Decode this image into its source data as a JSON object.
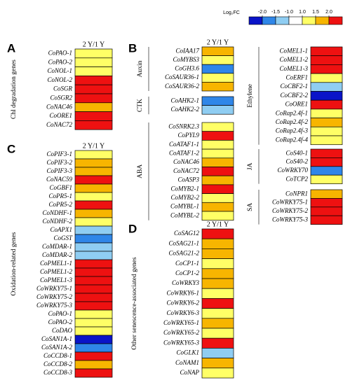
{
  "chart_data": {
    "type": "heatmap",
    "legend": {
      "title": "Log₂FC",
      "ticks": [
        {
          "value": -2,
          "label": "-2.0"
        },
        {
          "value": -1.5,
          "label": "-1.5"
        },
        {
          "value": -1,
          "label": "-1.0"
        },
        {
          "value": 1,
          "label": "1.0"
        },
        {
          "value": 1.5,
          "label": "1.5"
        },
        {
          "value": 2,
          "label": "2.0"
        }
      ],
      "colors": [
        "#0a14c8",
        "#2f86e8",
        "#8fcdf2",
        "#ffffff",
        "#ffff66",
        "#f7b500",
        "#ee1111"
      ]
    },
    "panels": [
      {
        "letter": "A",
        "column": "2 Y/1 Y",
        "groups": [
          {
            "label": "Chl degradation genes",
            "genes": [
              "CoPAO-1",
              "CoPAO-2",
              "CoNOL-1",
              "CoNOL-2",
              "CoSGR",
              "CoSGR2",
              "CoNAC46",
              "CoORE1",
              "CoNAC72"
            ],
            "values": [
              1.25,
              1.25,
              1.25,
              2.5,
              2.5,
              2.5,
              1.75,
              2.5,
              2.5
            ]
          }
        ]
      },
      {
        "letter": "B",
        "column": "2 Y/1 Y",
        "groups": [
          {
            "label": "Auxin",
            "genes": [
              "CoIAA17",
              "CoMYBS3",
              "CoGH3.6",
              "CoSAUR36-1",
              "CoSAUR36-2"
            ],
            "values": [
              1.75,
              1.25,
              -1.75,
              1.25,
              1.75
            ]
          },
          {
            "label": "CTK",
            "genes": [
              "CoAHK2-1",
              "CoAHK2-2"
            ],
            "values": [
              -1.75,
              -1.25
            ]
          },
          {
            "label": "ABA",
            "genes": [
              "CoSNRK2.3",
              "CoPYL9",
              "CoATAF1-1",
              "CoATAF1-2",
              "CoNAC46",
              "CoNAC72",
              "CoASP3",
              "CoMYB2-1",
              "CoMYB2-2",
              "CoMYBL-1",
              "CoMYBL-2"
            ],
            "values": [
              1.25,
              2.5,
              1.25,
              1.25,
              1.75,
              2.5,
              1.75,
              2.5,
              1.25,
              1.75,
              1.25
            ]
          },
          {
            "label": "Ethylene",
            "genes": [
              "CoMEL1-1",
              "CoMEL1-2",
              "CoMEL1-3",
              "CoERF1",
              "CoCBF2-1",
              "CoCBF2-2",
              "CoORE1",
              "CoRap2.4f-1",
              "CoRap2.4f-2",
              "CoRap2.4f-3",
              "CoRap2.4f-4"
            ],
            "values": [
              2.5,
              2.5,
              2.5,
              1.25,
              -1.25,
              -2.5,
              2.5,
              1.25,
              1.75,
              1.25,
              1.25
            ]
          },
          {
            "label": "JA",
            "genes": [
              "CoS40-1",
              "CoS40-2",
              "CoWRKY70",
              "CoTCP2"
            ],
            "values": [
              2.5,
              2.5,
              -1.75,
              1.25
            ]
          },
          {
            "label": "SA",
            "genes": [
              "CoNPR1",
              "CoWRKY75-1",
              "CoWRKY75-2",
              "CoWRKY75-3"
            ],
            "values": [
              1.75,
              2.5,
              2.5,
              2.5
            ]
          }
        ]
      },
      {
        "letter": "C",
        "column": "2 Y/1 Y",
        "groups": [
          {
            "label": "Oxidation-related genes",
            "genes": [
              "CoPIF3-1",
              "CoPIF3-2",
              "CoPIF3-3",
              "CoNAC59",
              "CoGBF1",
              "CoPR5-1",
              "CoPR5-2",
              "CoNDHF-1",
              "CoNDHF-2",
              "CoAPX1",
              "CoGST",
              "CoMDAR-1",
              "CoMDAR-2",
              "CoPMEL1-1",
              "CoPMEL1-2",
              "CoPMEL1-3",
              "CoWRKY75-1",
              "CoWRKY75-2",
              "CoWRKY75-3",
              "CoPAO-1",
              "CoPAO-2",
              "CoDAO",
              "CoSAN1A-1",
              "CoSAN1A-2",
              "CoCCD8-1",
              "CoCCD8-2",
              "CoCCD8-3"
            ],
            "values": [
              1.25,
              1.75,
              1.75,
              2.5,
              1.75,
              1.25,
              2.5,
              1.75,
              1.25,
              -1.25,
              -1.75,
              -1.25,
              -1.25,
              2.5,
              2.5,
              2.5,
              2.5,
              2.5,
              2.5,
              1.25,
              1.25,
              1.25,
              -2.5,
              -1.75,
              2.5,
              1.75,
              2.5
            ]
          }
        ]
      },
      {
        "letter": "D",
        "column": "2 Y/1 Y",
        "groups": [
          {
            "label": "Other senescence-associated genes",
            "genes": [
              "CoSAG12",
              "CoSAG21-1",
              "CoSAG21-2",
              "CoCP1-1",
              "CoCP1-2",
              "CoWRKY3",
              "CoWRKY6-1",
              "CoWRKY6-2",
              "CoWRKY6-3",
              "CoWRKY65-1",
              "CoWRKY65-2",
              "CoWRKY65-3",
              "CoGLK1",
              "CoNAM1",
              "CoNAP"
            ],
            "values": [
              2.5,
              1.75,
              1.75,
              1.25,
              1.75,
              1.75,
              1.25,
              2.5,
              1.25,
              1.75,
              1.25,
              2.5,
              -1.25,
              1.75,
              1.25
            ]
          }
        ]
      }
    ]
  }
}
